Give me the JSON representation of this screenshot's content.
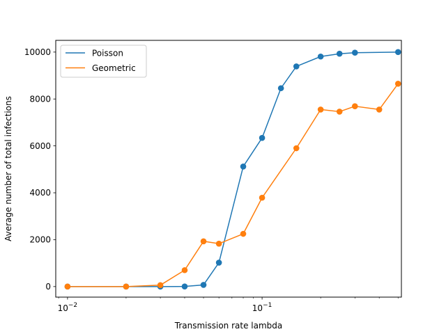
{
  "chart_data": {
    "type": "line",
    "title": "",
    "xlabel": "Transmission rate lambda",
    "ylabel": "Average number of total infections",
    "xscale": "log",
    "xlim": [
      0.0087,
      0.52
    ],
    "ylim": [
      -450,
      10500
    ],
    "x_ticks": [
      {
        "base": "10",
        "exp": "−2",
        "value": 0.01
      },
      {
        "base": "10",
        "exp": "−1",
        "value": 0.1
      }
    ],
    "y_ticks": [
      "0",
      "2000",
      "4000",
      "6000",
      "8000",
      "10000"
    ],
    "legend_position": "upper-left",
    "grid": false,
    "x": [
      0.01,
      0.02,
      0.03,
      0.04,
      0.05,
      0.06,
      0.08,
      0.1,
      0.125,
      0.15,
      0.2,
      0.25,
      0.3,
      0.4,
      0.5
    ],
    "series": [
      {
        "name": "Poisson",
        "color": "#1f77b4",
        "values": [
          0,
          0,
          0,
          5,
          70,
          1020,
          5120,
          6340,
          8460,
          9390,
          9810,
          9930,
          9975,
          null,
          10000
        ]
      },
      {
        "name": "Geometric",
        "color": "#ff7f0e",
        "values": [
          0,
          0,
          60,
          700,
          1930,
          1830,
          2250,
          3790,
          null,
          5900,
          7550,
          7460,
          7690,
          7550,
          8650
        ]
      }
    ]
  }
}
